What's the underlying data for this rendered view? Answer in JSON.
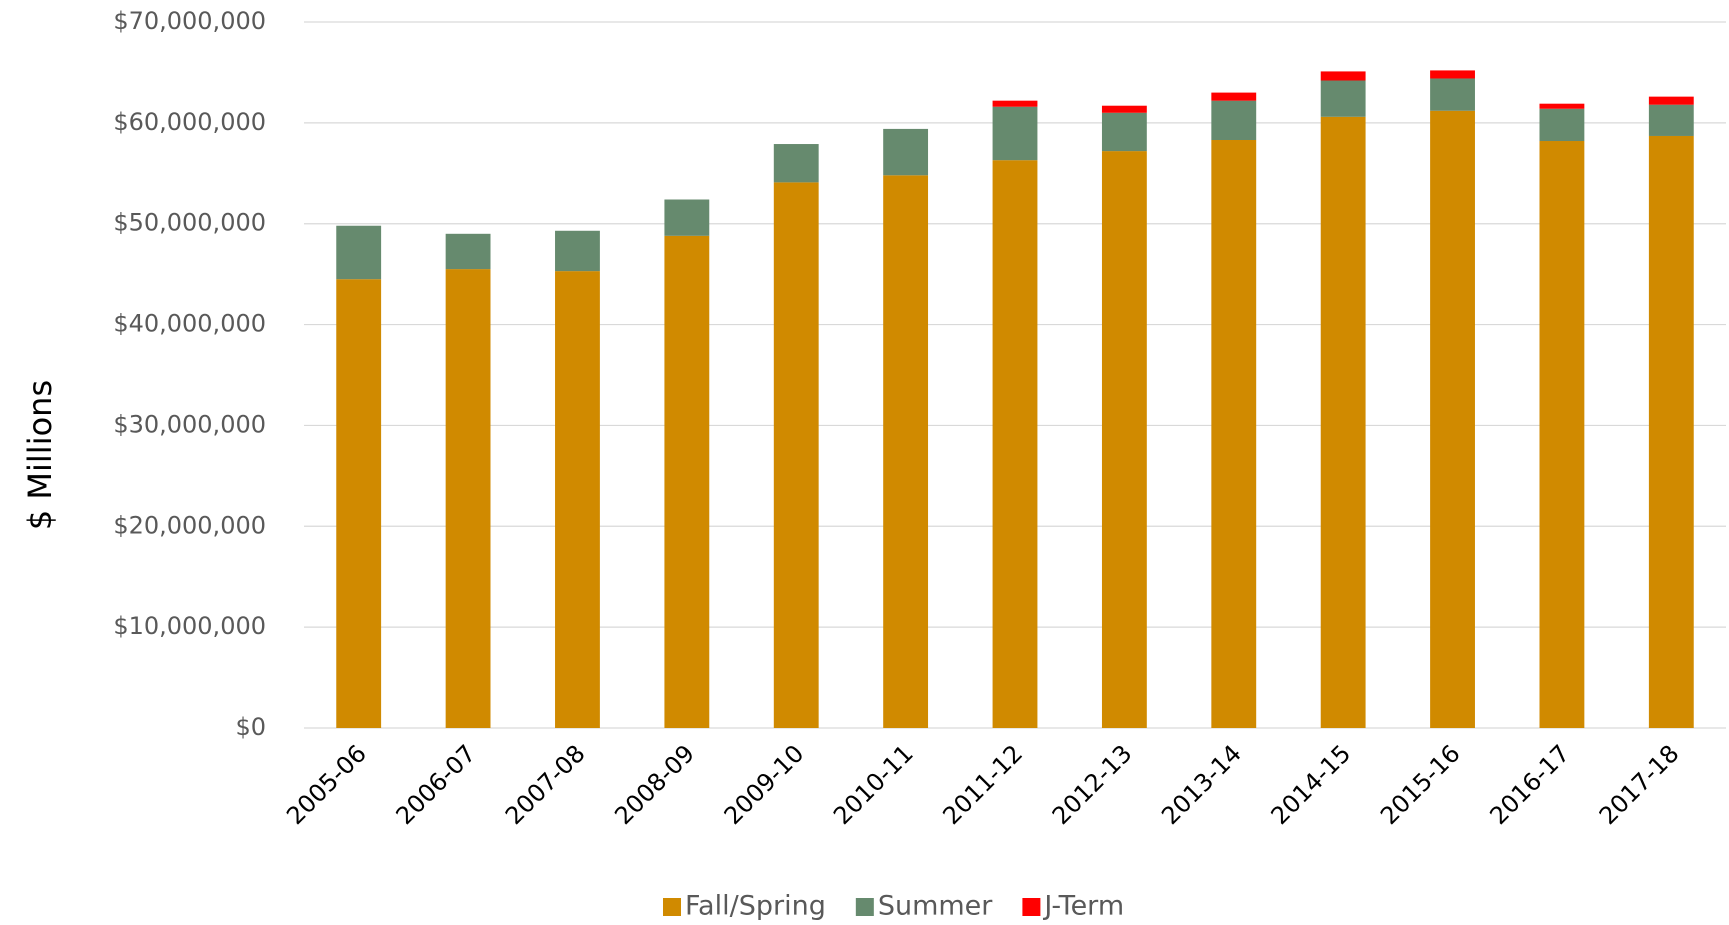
{
  "chart_data": {
    "type": "stacked-bar",
    "y_label": "$ Millions",
    "categories": [
      "2005-06",
      "2006-07",
      "2007-08",
      "2008-09",
      "2009-10",
      "2010-11",
      "2011-12",
      "2012-13",
      "2013-14",
      "2014-15",
      "2015-16",
      "2016-17",
      "2017-18"
    ],
    "series": [
      {
        "name": "Fall/Spring",
        "color": "#d08a00",
        "values": [
          44500000,
          45500000,
          45300000,
          48800000,
          54100000,
          54800000,
          56300000,
          57200000,
          58300000,
          60600000,
          61200000,
          58200000,
          58700000
        ]
      },
      {
        "name": "Summer",
        "color": "#668a6e",
        "values": [
          5300000,
          3500000,
          4000000,
          3600000,
          3800000,
          4600000,
          5300000,
          3800000,
          3900000,
          3600000,
          3200000,
          3200000,
          3100000
        ]
      },
      {
        "name": "J-Term",
        "color": "#ff0000",
        "values": [
          null,
          null,
          null,
          null,
          null,
          null,
          600000,
          700000,
          800000,
          900000,
          800000,
          500000,
          800000
        ]
      }
    ],
    "ylim": [
      0,
      70000000
    ],
    "yticks": [
      {
        "value": 0,
        "label": "$0"
      },
      {
        "value": 10000000,
        "label": "$10,000,000"
      },
      {
        "value": 20000000,
        "label": "$20,000,000"
      },
      {
        "value": 30000000,
        "label": "$30,000,000"
      },
      {
        "value": 40000000,
        "label": "$40,000,000"
      },
      {
        "value": 50000000,
        "label": "$50,000,000"
      },
      {
        "value": 60000000,
        "label": "$60,000,000"
      },
      {
        "value": 70000000,
        "label": "$70,000,000"
      }
    ],
    "grid": true,
    "legend": "bottom"
  }
}
